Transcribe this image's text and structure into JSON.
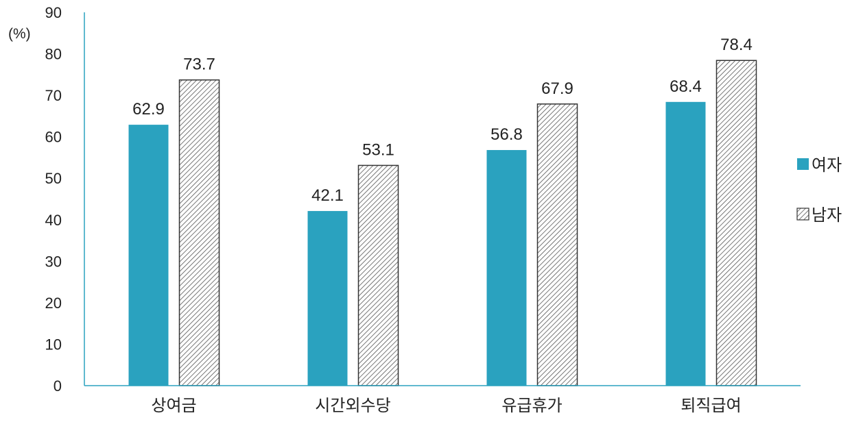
{
  "chart_data": {
    "type": "bar",
    "unit_label": "(%)",
    "categories": [
      "상여금",
      "시간외수당",
      "유급휴가",
      "퇴직급여"
    ],
    "series": [
      {
        "name": "여자",
        "values": [
          62.9,
          42.1,
          56.8,
          68.4
        ],
        "color": "#2aa2bf",
        "fill": "solid"
      },
      {
        "name": "남자",
        "values": [
          73.7,
          53.1,
          67.9,
          78.4
        ],
        "color": "#555555",
        "fill": "hatched"
      }
    ],
    "ylim": [
      0,
      90
    ],
    "yticks": [
      0,
      10,
      20,
      30,
      40,
      50,
      60,
      70,
      80,
      90
    ],
    "axis_color": "#2aa2bf",
    "grid": false,
    "legend_position": "right"
  }
}
